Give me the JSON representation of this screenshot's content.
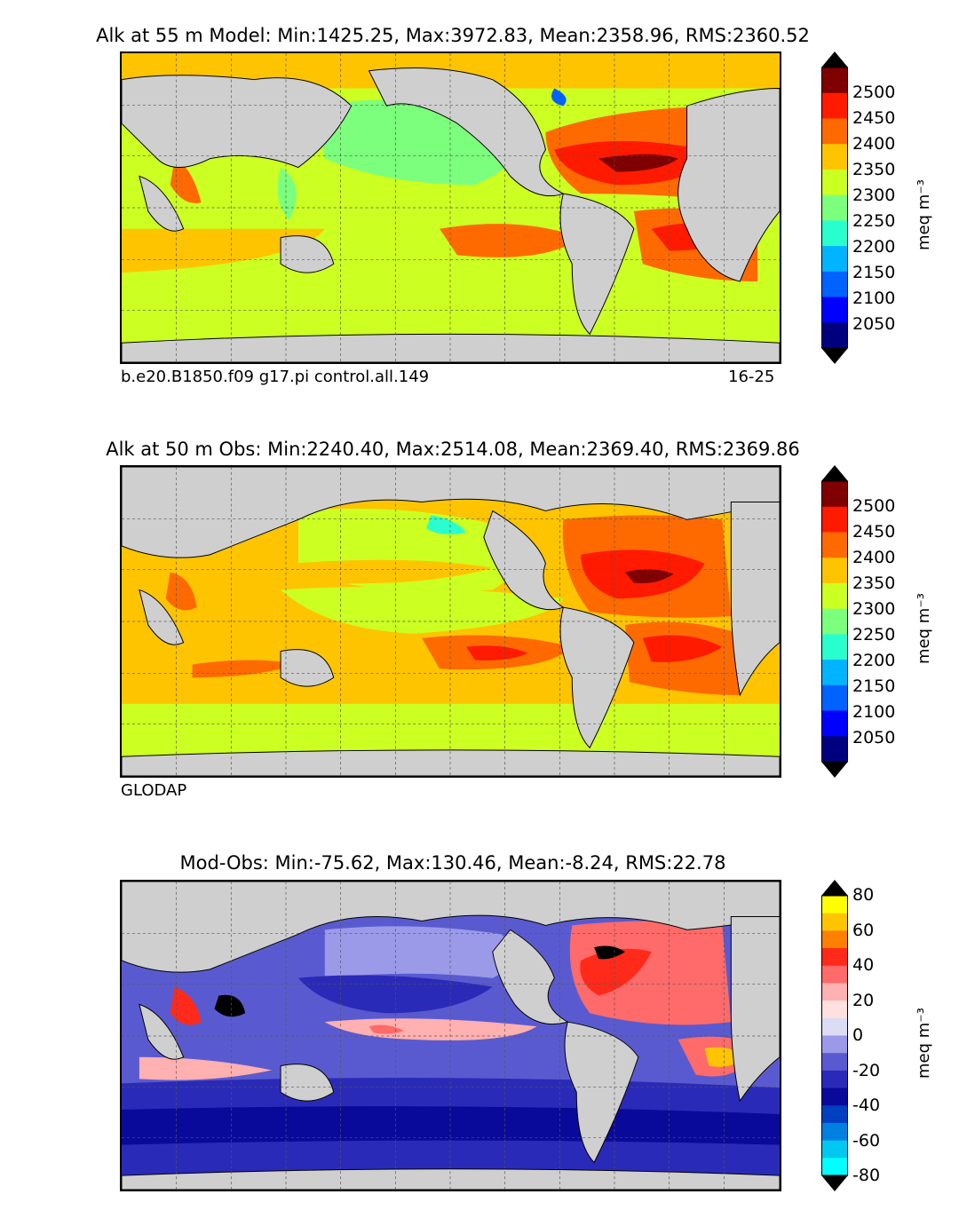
{
  "panels": [
    {
      "title": "Alk at 55 m Model: Min:1425.25, Max:3972.83, Mean:2358.96, RMS:2360.52",
      "caption_left": "b.e20.B1850.f09 g17.pi control.all.149",
      "caption_right": "16-25",
      "colorbar": {
        "unit": "meq m⁻³",
        "ticks": [
          "2500",
          "2450",
          "2400",
          "2350",
          "2300",
          "2250",
          "2200",
          "2150",
          "2100",
          "2050"
        ],
        "colors": [
          "#7f0000",
          "#ff1a00",
          "#ff6a00",
          "#ffc400",
          "#ccff22",
          "#7cff7c",
          "#29ffce",
          "#00b4ff",
          "#0062ff",
          "#0000ff",
          "#00007f"
        ]
      },
      "base_fill": "#ccff22"
    },
    {
      "title": "Alk at 50 m Obs: Min:2240.40, Max:2514.08, Mean:2369.40, RMS:2369.86",
      "caption_left": "GLODAP",
      "caption_right": "",
      "colorbar": {
        "unit": "meq m⁻³",
        "ticks": [
          "2500",
          "2450",
          "2400",
          "2350",
          "2300",
          "2250",
          "2200",
          "2150",
          "2100",
          "2050"
        ],
        "colors": [
          "#7f0000",
          "#ff1a00",
          "#ff6a00",
          "#ffc400",
          "#ccff22",
          "#7cff7c",
          "#29ffce",
          "#00b4ff",
          "#0062ff",
          "#0000ff",
          "#00007f"
        ]
      },
      "base_fill": "#ffc400"
    },
    {
      "title": "Mod-Obs: Min:-75.62, Max:130.46, Mean:-8.24, RMS:22.78",
      "caption_left": "",
      "caption_right": "",
      "colorbar": {
        "unit": "meq m⁻³",
        "ticks": [
          "80",
          "60",
          "40",
          "20",
          "0",
          "-20",
          "-40",
          "-60",
          "-80"
        ],
        "colors": [
          "#ffff00",
          "#ffc400",
          "#ff7f00",
          "#ff2a1a",
          "#ff6a6a",
          "#ffb0b0",
          "#ffe0e0",
          "#dcdcf4",
          "#9a9ae8",
          "#5a5ad0",
          "#2a2ab8",
          "#0a0a9a",
          "#0040c0",
          "#0080e0",
          "#00c8f0",
          "#00ffff"
        ]
      },
      "base_fill": "#5a5ad0"
    }
  ],
  "colors": {
    "land": "#cfcfcf",
    "missing": "#ffffff",
    "coast": "#000000",
    "grid": "#555555"
  }
}
